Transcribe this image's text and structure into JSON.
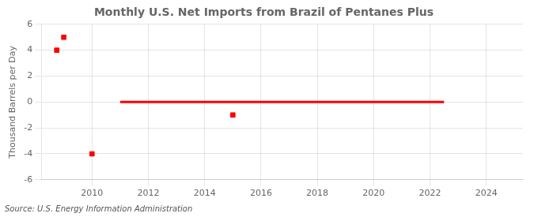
{
  "chart_data": {
    "type": "scatter",
    "title": "Monthly U.S. Net Imports from Brazil of Pentanes Plus",
    "ylabel": "Thousand Barrels per Day",
    "source": "Source: U.S. Energy Information Administration",
    "series": [
      {
        "type": "scatter",
        "color": "#ff0000",
        "marker": "square",
        "x": [
          2008.75,
          2009.0,
          2010.0,
          2015.0
        ],
        "values": [
          4.0,
          5.0,
          -4.0,
          -1.0
        ]
      },
      {
        "type": "line",
        "color": "#ff0000",
        "line_style": "solid",
        "x": [
          2011.0,
          2022.5
        ],
        "values": [
          0.0,
          0.0
        ]
      }
    ],
    "xlim": [
      2008.2,
      2025.3
    ],
    "xticks": [
      2010,
      2012,
      2014,
      2016,
      2018,
      2020,
      2022,
      2024
    ],
    "ylim": [
      -6,
      6
    ],
    "yticks": [
      -6,
      -4,
      -2,
      0,
      2,
      4,
      6
    ],
    "grid": true
  }
}
